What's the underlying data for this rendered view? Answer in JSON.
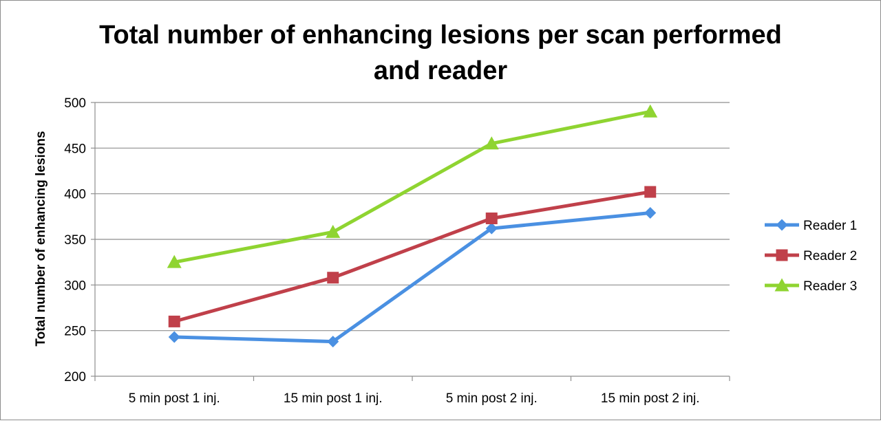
{
  "chart_data": {
    "type": "line",
    "title_lines": [
      "Total number of enhancing lesions per scan performed",
      "and reader"
    ],
    "xlabel": "",
    "ylabel": "Total number of enhancing lesions",
    "categories": [
      "5 min post 1 inj.",
      "15 min post 1 inj.",
      "5 min post 2 inj.",
      "15 min post 2 inj."
    ],
    "ylim": [
      200,
      500
    ],
    "yticks": [
      200,
      250,
      300,
      350,
      400,
      450,
      500
    ],
    "grid": true,
    "legend_position": "right",
    "series": [
      {
        "name": "Reader 1",
        "values": [
          243,
          238,
          362,
          379
        ],
        "color": "#4a90e2",
        "marker": "diamond"
      },
      {
        "name": "Reader 2",
        "values": [
          260,
          308,
          373,
          402
        ],
        "color": "#c0404a",
        "marker": "square"
      },
      {
        "name": "Reader 3",
        "values": [
          325,
          358,
          455,
          490
        ],
        "color": "#8fd431",
        "marker": "triangle"
      }
    ]
  }
}
